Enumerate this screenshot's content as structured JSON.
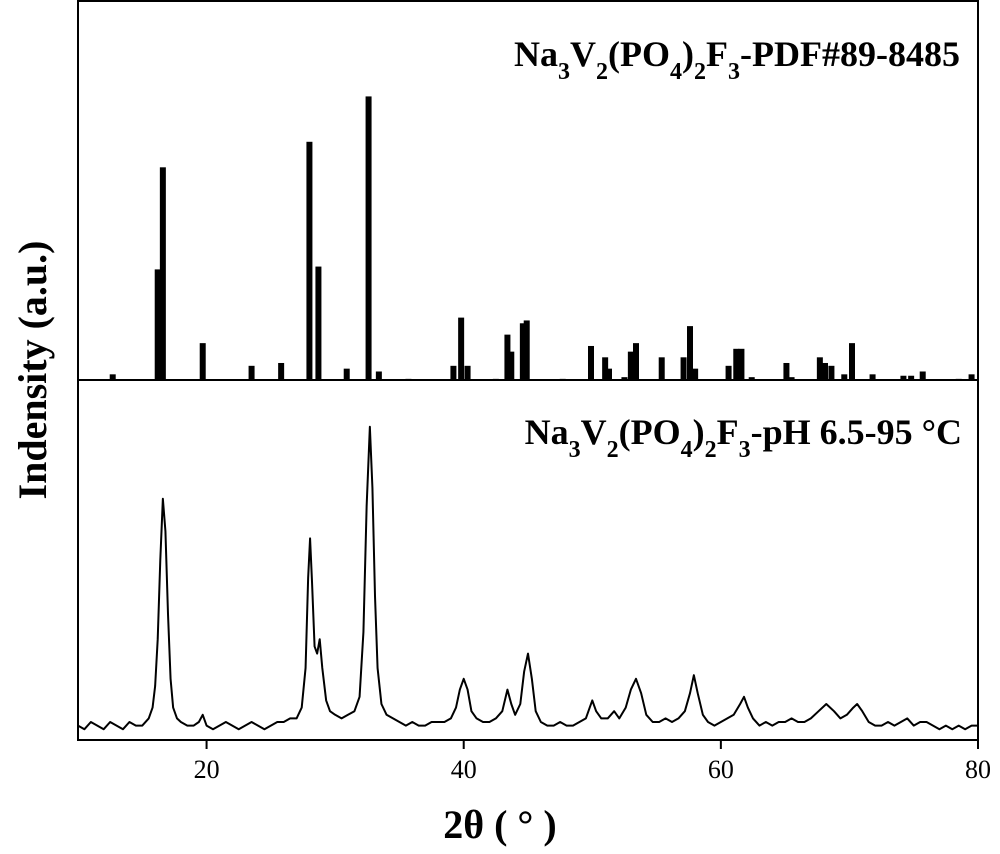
{
  "chart_data": [
    {
      "type": "bar",
      "title": "Na3V2(PO4)2F3-PDF#89-8485",
      "color": "#000000",
      "x": [
        12.7,
        16.2,
        16.6,
        19.7,
        23.5,
        25.8,
        28.0,
        28.7,
        30.9,
        32.6,
        33.4,
        35.7,
        39.2,
        39.8,
        40.3,
        42.5,
        43.4,
        43.7,
        44.6,
        44.9,
        47.7,
        49.9,
        51.0,
        51.3,
        52.5,
        53.0,
        53.4,
        55.4,
        57.1,
        57.6,
        58.0,
        60.6,
        61.2,
        61.6,
        62.4,
        65.1,
        65.5,
        67.7,
        68.1,
        68.6,
        69.6,
        70.2,
        71.8,
        74.2,
        74.8,
        75.7,
        78.5,
        79.5
      ],
      "values": [
        2,
        39,
        75,
        13,
        5,
        6,
        84,
        40,
        4,
        100,
        3,
        0.4,
        5,
        22,
        5,
        0.4,
        16,
        10,
        20,
        21,
        0.4,
        12,
        8,
        4,
        1,
        10,
        13,
        8,
        8,
        19,
        4,
        5,
        11,
        11,
        1,
        6,
        1,
        8,
        6,
        5,
        2,
        13,
        2,
        1.5,
        1.5,
        3,
        0.4,
        2
      ],
      "xlim": [
        10,
        80
      ],
      "ylim": [
        0,
        134
      ]
    },
    {
      "type": "line",
      "title": "Na3V2(PO4)2F3-pH 6.5-95 °C",
      "color": "#000000",
      "x": [
        10,
        10.5,
        11,
        11.5,
        12,
        12.5,
        13,
        13.5,
        14,
        14.5,
        15,
        15.5,
        15.8,
        16.0,
        16.2,
        16.4,
        16.6,
        16.8,
        17.0,
        17.2,
        17.4,
        17.7,
        18,
        18.5,
        19,
        19.4,
        19.7,
        20,
        20.5,
        21,
        21.5,
        22,
        22.5,
        23,
        23.5,
        24,
        24.5,
        25,
        25.5,
        26,
        26.5,
        27,
        27.4,
        27.7,
        27.9,
        28.05,
        28.2,
        28.4,
        28.6,
        28.8,
        29.0,
        29.3,
        29.6,
        30,
        30.5,
        31,
        31.5,
        31.9,
        32.2,
        32.45,
        32.7,
        32.9,
        33.1,
        33.3,
        33.6,
        34,
        34.5,
        35,
        35.5,
        36,
        36.5,
        37,
        37.5,
        38,
        38.5,
        39,
        39.4,
        39.7,
        40.0,
        40.3,
        40.6,
        41,
        41.5,
        42,
        42.5,
        43,
        43.4,
        43.7,
        44.0,
        44.4,
        44.7,
        45.0,
        45.3,
        45.6,
        46,
        46.5,
        47,
        47.5,
        48,
        48.5,
        49,
        49.5,
        49.8,
        50.0,
        50.3,
        50.7,
        51.2,
        51.7,
        52.1,
        52.6,
        53.0,
        53.4,
        53.8,
        54.2,
        54.7,
        55.2,
        55.7,
        56.2,
        56.7,
        57.2,
        57.6,
        57.9,
        58.2,
        58.6,
        59,
        59.5,
        60,
        60.5,
        61,
        61.5,
        61.8,
        62.1,
        62.5,
        63,
        63.5,
        64,
        64.5,
        65,
        65.5,
        66,
        66.5,
        67,
        67.6,
        68.2,
        68.8,
        69.3,
        69.8,
        70.3,
        70.6,
        71.0,
        71.5,
        72,
        72.5,
        73,
        73.5,
        74,
        74.5,
        75,
        75.5,
        76,
        76.5,
        77,
        77.5,
        78,
        78.5,
        79,
        79.5,
        80
      ],
      "values": [
        4,
        3,
        5,
        4,
        3,
        5,
        4,
        3,
        5,
        4,
        4,
        6,
        9,
        15,
        28,
        50,
        67,
        58,
        35,
        17,
        9,
        6,
        5,
        4,
        4,
        5,
        7,
        4,
        3,
        4,
        5,
        4,
        3,
        4,
        5,
        4,
        3,
        4,
        5,
        5,
        6,
        6,
        9,
        20,
        45,
        56,
        44,
        26,
        24,
        28,
        20,
        11,
        8,
        7,
        6,
        7,
        8,
        12,
        30,
        65,
        87,
        70,
        40,
        20,
        10,
        7,
        6,
        5,
        4,
        5,
        4,
        4,
        5,
        5,
        5,
        6,
        9,
        14,
        17,
        14,
        8,
        6,
        5,
        5,
        6,
        8,
        14,
        10,
        7,
        10,
        19,
        24,
        17,
        8,
        5,
        4,
        4,
        5,
        4,
        4,
        5,
        6,
        9,
        11,
        8,
        6,
        6,
        8,
        6,
        9,
        14,
        17,
        13,
        7,
        5,
        5,
        6,
        5,
        6,
        8,
        13,
        18,
        13,
        7,
        5,
        4,
        5,
        6,
        7,
        10,
        12,
        9,
        6,
        4,
        5,
        4,
        5,
        5,
        6,
        5,
        5,
        6,
        8,
        10,
        8,
        6,
        7,
        9,
        10,
        8,
        5,
        4,
        4,
        5,
        4,
        5,
        6,
        4,
        5,
        5,
        4,
        3,
        4,
        3,
        4,
        3,
        4,
        4
      ],
      "xlim": [
        10,
        80
      ],
      "ylim": [
        0,
        100
      ],
      "xticks": [
        20,
        40,
        60,
        80
      ],
      "xlabel": "2θ ( ° )",
      "ylabel": "Indensity (a.u.)"
    }
  ]
}
